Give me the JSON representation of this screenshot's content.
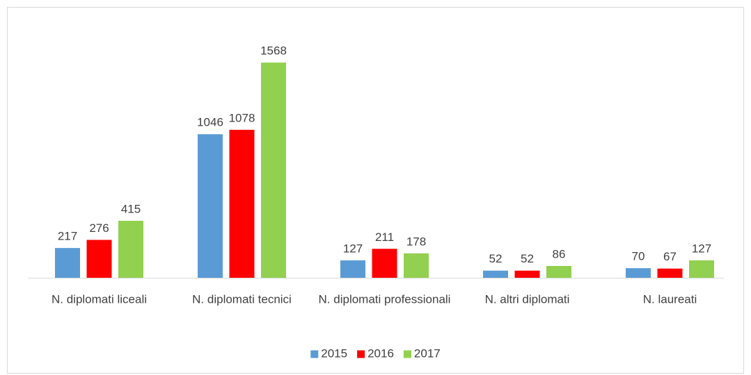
{
  "chart_data": {
    "type": "bar",
    "categories": [
      "N. diplomati liceali",
      "N. diplomati tecnici",
      "N. diplomati professionali",
      "N. altri diplomati",
      "N. laureati"
    ],
    "series": [
      {
        "name": "2015",
        "color": "#5b9bd5",
        "values": [
          217,
          1046,
          127,
          52,
          70
        ]
      },
      {
        "name": "2016",
        "color": "#ff0000",
        "values": [
          276,
          1078,
          211,
          52,
          67
        ]
      },
      {
        "name": "2017",
        "color": "#92d050",
        "values": [
          415,
          1568,
          178,
          86,
          127
        ]
      }
    ],
    "ylim": [
      0,
      1700
    ],
    "legend": "bottom"
  }
}
